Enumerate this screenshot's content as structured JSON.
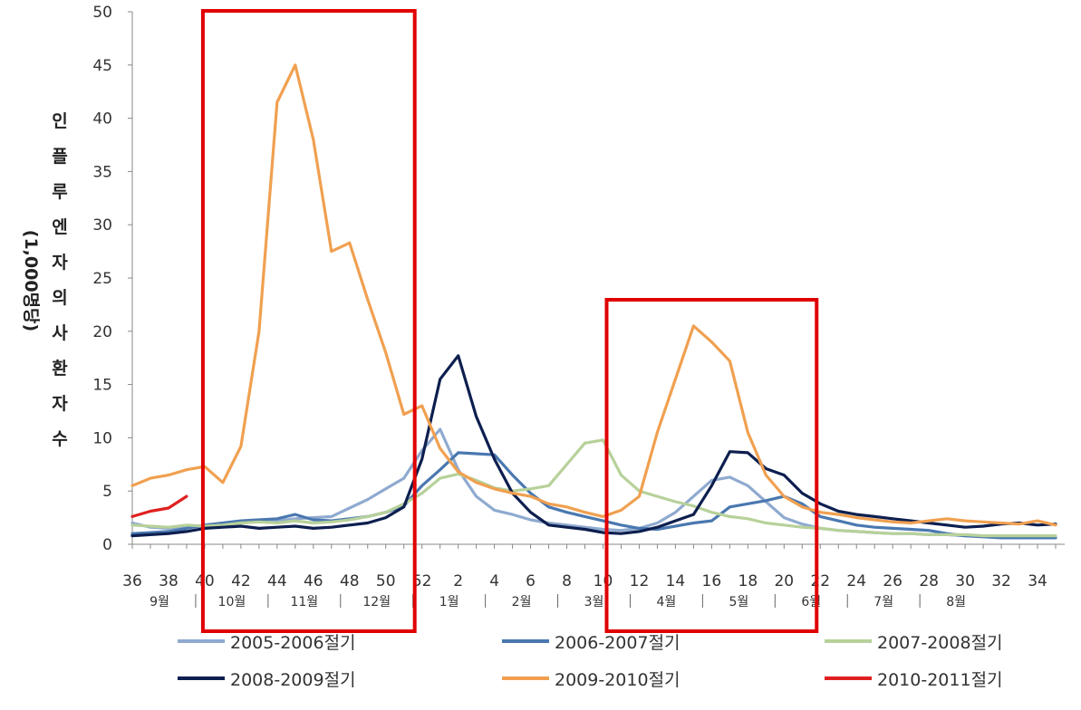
{
  "chart_data": {
    "type": "line",
    "ylabel": "인플루엔자의사환자수",
    "ylabel_unit": "(1,000명당)",
    "ylim": [
      0,
      50
    ],
    "yticks": [
      "0",
      "5",
      "10",
      "15",
      "20",
      "25",
      "30",
      "35",
      "40",
      "45",
      "50"
    ],
    "x_tick_labels": [
      "36",
      "38",
      "40",
      "42",
      "44",
      "46",
      "48",
      "50",
      "52",
      "2",
      "4",
      "6",
      "8",
      "10",
      "12",
      "14",
      "16",
      "18",
      "20",
      "22",
      "24",
      "26",
      "28",
      "30",
      "32",
      "34"
    ],
    "month_labels": [
      "9월",
      "10월",
      "11월",
      "12월",
      "1월",
      "2월",
      "3월",
      "4월",
      "5월",
      "6월",
      "7월",
      "8월"
    ],
    "month_week_positions": [
      37.5,
      41.5,
      45.5,
      49.5,
      53.5,
      57.5,
      61.5,
      65.5,
      69.5,
      73.5,
      77.5,
      81.5
    ],
    "month_separator_weeks": [
      39.5,
      43.5,
      47.5,
      51.5,
      55.5,
      59.5,
      63.5,
      67.5,
      71.5,
      75.5,
      79.5
    ],
    "highlight_boxes": [
      {
        "from_week": 39.9,
        "to_week": 51.6
      },
      {
        "from_week": 62.2,
        "to_week": 73.8
      }
    ],
    "highlight_color": "#e00000",
    "x_week_note": "weeks 36-52 of season start year, then weeks 1-35 of next year (shown as continued index 53-87)",
    "series": [
      {
        "name": "2005-2006절기",
        "color": "#8faad0",
        "weeks_start": 36,
        "values": [
          2.0,
          1.6,
          1.5,
          1.6,
          1.7,
          1.9,
          2.1,
          2.3,
          2.2,
          2.4,
          2.5,
          2.6,
          3.4,
          4.2,
          5.2,
          6.2,
          8.8,
          10.8,
          7.0,
          4.5,
          3.2,
          2.8,
          2.3,
          2.0,
          1.8,
          1.6,
          1.4,
          1.3,
          1.5,
          2.0,
          3.0,
          4.5,
          6.0,
          6.3,
          5.5,
          4.0,
          2.5,
          1.9,
          1.5,
          1.3,
          1.2,
          1.1,
          1.0,
          1.0,
          0.9,
          0.9,
          0.8,
          0.8,
          0.8,
          0.8,
          0.7,
          0.7
        ]
      },
      {
        "name": "2006-2007절기",
        "color": "#4a78b0",
        "weeks_start": 36,
        "values": [
          1.0,
          1.1,
          1.2,
          1.5,
          1.8,
          2.0,
          2.2,
          2.3,
          2.4,
          2.8,
          2.3,
          2.2,
          2.4,
          2.6,
          3.0,
          3.6,
          5.5,
          7.0,
          8.6,
          8.5,
          8.4,
          6.5,
          4.8,
          3.5,
          3.0,
          2.6,
          2.2,
          1.8,
          1.5,
          1.4,
          1.7,
          2.0,
          2.2,
          3.5,
          3.8,
          4.1,
          4.5,
          3.8,
          2.6,
          2.2,
          1.8,
          1.6,
          1.5,
          1.4,
          1.3,
          1.0,
          0.8,
          0.7,
          0.6,
          0.6,
          0.6,
          0.6
        ]
      },
      {
        "name": "2007-2008절기",
        "color": "#b7d19a",
        "weeks_start": 36,
        "values": [
          1.8,
          1.7,
          1.6,
          1.8,
          1.7,
          1.8,
          2.0,
          2.1,
          2.0,
          2.2,
          2.0,
          2.1,
          2.3,
          2.6,
          3.0,
          3.8,
          4.8,
          6.2,
          6.6,
          6.0,
          5.3,
          5.0,
          5.2,
          5.5,
          7.5,
          9.5,
          9.8,
          6.5,
          5.0,
          4.5,
          4.0,
          3.6,
          3.0,
          2.6,
          2.4,
          2.0,
          1.8,
          1.6,
          1.5,
          1.3,
          1.2,
          1.1,
          1.0,
          1.0,
          0.9,
          0.9,
          0.9,
          0.8,
          0.8,
          0.8,
          0.8,
          0.8
        ]
      },
      {
        "name": "2008-2009절기",
        "color": "#0d1f4f",
        "weeks_start": 36,
        "values": [
          0.8,
          0.9,
          1.0,
          1.2,
          1.5,
          1.6,
          1.7,
          1.5,
          1.6,
          1.7,
          1.5,
          1.6,
          1.8,
          2.0,
          2.5,
          3.5,
          8.0,
          15.5,
          17.7,
          12.0,
          8.0,
          4.8,
          3.0,
          1.8,
          1.6,
          1.4,
          1.1,
          1.0,
          1.2,
          1.6,
          2.2,
          2.8,
          5.5,
          8.7,
          8.6,
          7.1,
          6.5,
          4.8,
          3.8,
          3.1,
          2.8,
          2.6,
          2.4,
          2.2,
          2.0,
          1.8,
          1.6,
          1.7,
          1.9,
          2.0,
          1.8,
          1.9
        ]
      },
      {
        "name": "2009-2010절기",
        "color": "#f0a050",
        "weeks_start": 36,
        "values": [
          5.5,
          6.2,
          6.5,
          7.0,
          7.3,
          5.8,
          9.2,
          20.0,
          41.5,
          45.0,
          38.0,
          27.5,
          28.3,
          23.0,
          18.0,
          12.2,
          13.0,
          9.0,
          6.8,
          5.8,
          5.2,
          4.8,
          4.5,
          3.8,
          3.5,
          3.0,
          2.6,
          3.2,
          4.5,
          10.5,
          15.5,
          20.5,
          19.0,
          17.2,
          10.5,
          6.5,
          4.5,
          3.5,
          3.0,
          2.8,
          2.5,
          2.3,
          2.1,
          2.0,
          2.2,
          2.4,
          2.2,
          2.1,
          2.0,
          1.9,
          2.2,
          1.8
        ]
      },
      {
        "name": "2010-2011절기",
        "color": "#e02020",
        "weeks_start": 36,
        "values": [
          2.6,
          3.1,
          3.4,
          4.5
        ]
      }
    ],
    "legend": [
      {
        "name": "2005-2006절기",
        "color": "#8faad0"
      },
      {
        "name": "2006-2007절기",
        "color": "#4a78b0"
      },
      {
        "name": "2007-2008절기",
        "color": "#b7d19a"
      },
      {
        "name": "2008-2009절기",
        "color": "#0d1f4f"
      },
      {
        "name": "2009-2010절기",
        "color": "#f0a050"
      },
      {
        "name": "2010-2011절기",
        "color": "#e02020"
      }
    ],
    "grid": false,
    "legend_position": "bottom"
  }
}
